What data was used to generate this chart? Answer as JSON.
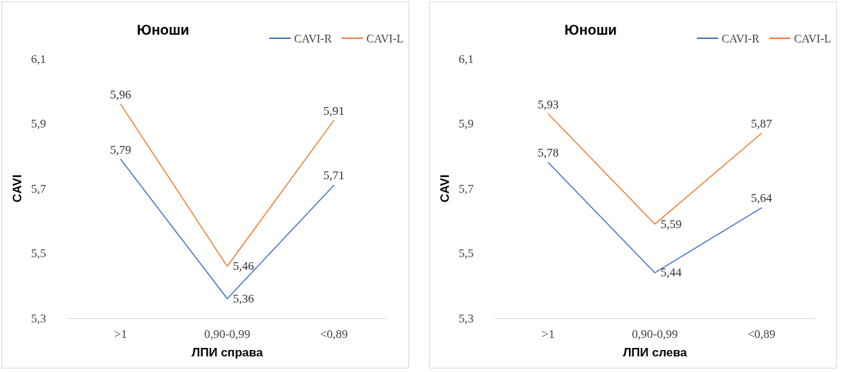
{
  "chart_data": [
    {
      "type": "line",
      "title": "Юноши",
      "xlabel": "ЛПИ справа",
      "ylabel": "CAVI",
      "categories": [
        ">1",
        "0,90-0,99",
        "<0,89"
      ],
      "series": [
        {
          "name": "CAVI-R",
          "color": "#4472c4",
          "values": [
            5.79,
            5.36,
            5.71
          ],
          "value_labels": [
            "5,79",
            "5,36",
            "5,71"
          ]
        },
        {
          "name": "CAVI-L",
          "color": "#ed7d31",
          "values": [
            5.96,
            5.46,
            5.91
          ],
          "value_labels": [
            "5,96",
            "5,46",
            "5,91"
          ]
        }
      ],
      "ylim": [
        5.3,
        6.1
      ],
      "yticks": [
        {
          "value": 5.3,
          "label": "5,3"
        },
        {
          "value": 5.5,
          "label": "5,5"
        },
        {
          "value": 5.7,
          "label": "5,7"
        },
        {
          "value": 5.9,
          "label": "5,9"
        },
        {
          "value": 6.1,
          "label": "6,1"
        }
      ],
      "grid": false,
      "legend": "top right",
      "marker": "none",
      "line_style": "solid"
    },
    {
      "type": "line",
      "title": "Юноши",
      "xlabel": "ЛПИ слева",
      "ylabel": "CAVI",
      "categories": [
        ">1",
        "0,90-0,99",
        "<0,89"
      ],
      "series": [
        {
          "name": "CAVI-R",
          "color": "#4472c4",
          "values": [
            5.78,
            5.44,
            5.64
          ],
          "value_labels": [
            "5,78",
            "5,44",
            "5,64"
          ]
        },
        {
          "name": "CAVI-L",
          "color": "#ed7d31",
          "values": [
            5.93,
            5.59,
            5.87
          ],
          "value_labels": [
            "5,93",
            "5,59",
            "5,87"
          ]
        }
      ],
      "ylim": [
        5.3,
        6.1
      ],
      "yticks": [
        {
          "value": 5.3,
          "label": "5,3"
        },
        {
          "value": 5.5,
          "label": "5,5"
        },
        {
          "value": 5.7,
          "label": "5,7"
        },
        {
          "value": 5.9,
          "label": "5,9"
        },
        {
          "value": 6.1,
          "label": "6,1"
        }
      ],
      "grid": false,
      "legend": "top right",
      "marker": "none",
      "line_style": "solid"
    }
  ]
}
